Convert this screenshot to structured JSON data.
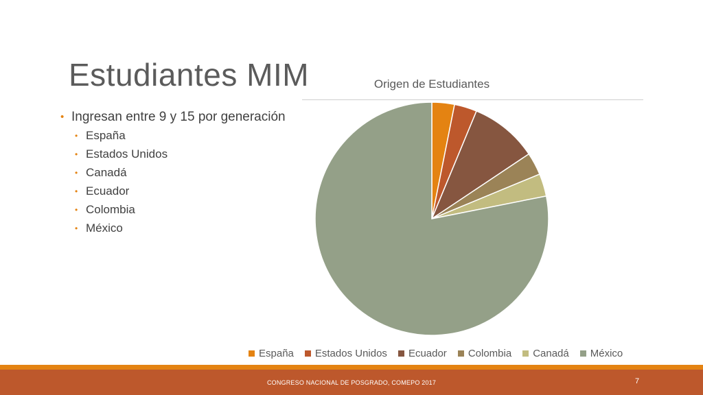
{
  "slide": {
    "title": "Estudiantes MIM",
    "footer_text": "CONGRESO NACIONAL DE POSGRADO, COMEPO 2017",
    "page_number": "7"
  },
  "bullets": {
    "main": "Ingresan entre 9 y 15 por generación",
    "sub": [
      "España",
      "Estados Unidos",
      "Canadá",
      "Ecuador",
      "Colombia",
      "México"
    ]
  },
  "chart_data": {
    "type": "pie",
    "title": "Origen de Estudiantes",
    "categories": [
      "España",
      "Estados Unidos",
      "Ecuador",
      "Colombia",
      "Canadá",
      "México"
    ],
    "values": [
      1,
      1,
      3,
      1,
      1,
      25
    ],
    "colors": [
      "#e48312",
      "#bd582c",
      "#865640",
      "#9b8357",
      "#c2bc80",
      "#94a088"
    ],
    "legend_position": "bottom"
  },
  "colors": {
    "accent_orange": "#e48312",
    "footer_brown": "#bd582c"
  }
}
